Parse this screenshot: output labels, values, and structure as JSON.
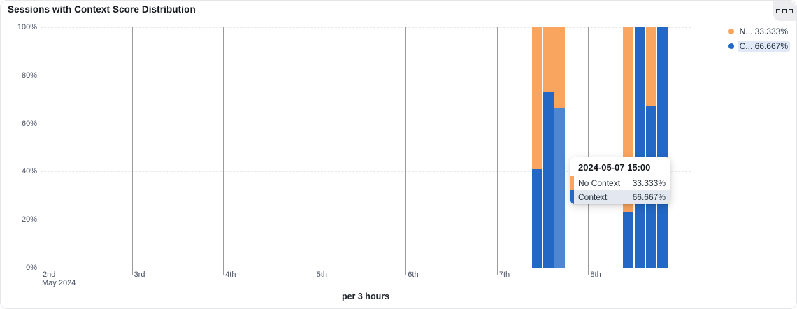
{
  "panel": {
    "title": "Sessions with Context Score Distribution",
    "corner_icon": "three-squares-icon"
  },
  "legend": {
    "items": [
      {
        "label": "N... 33.333%",
        "color": "#f9a45f",
        "highlighted": false
      },
      {
        "label": "C... 66.667%",
        "color": "#2368c4",
        "highlighted": true
      }
    ]
  },
  "tooltip": {
    "title": "2024-05-07 15:00",
    "rows": [
      {
        "label": "No Context",
        "value": "33.333%",
        "color": "#f9a45f",
        "highlighted": false
      },
      {
        "label": "Context",
        "value": "66.667%",
        "color": "#2368c4",
        "highlighted": true
      }
    ]
  },
  "chart_data": {
    "type": "bar",
    "stacked": true,
    "title": "Sessions with Context Score Distribution",
    "x_axis": {
      "name": "per 3 hours",
      "month_label": "May 2024",
      "tick_labels": [
        "2nd",
        "3rd",
        "4th",
        "5th",
        "6th",
        "7th",
        "8th"
      ]
    },
    "y_axis": {
      "tick_labels": [
        "0%",
        "20%",
        "40%",
        "60%",
        "80%",
        "100%"
      ],
      "range": [
        0,
        100
      ],
      "grid": "dashed-horizontal, solid-vertical-per-day"
    },
    "colors": {
      "context": "#2368c4",
      "context_hovered": "#4e86d2",
      "no_context": "#f9a45f"
    },
    "series": [
      {
        "name": "No Context",
        "stack_position": "top",
        "legend_value": "33.333%"
      },
      {
        "name": "Context",
        "stack_position": "bottom",
        "legend_value": "66.667%"
      }
    ],
    "bars": [
      {
        "time": "2024-05-07 09:00",
        "context": 41,
        "no_context": 59
      },
      {
        "time": "2024-05-07 12:00",
        "context": 73.3,
        "no_context": 26.7
      },
      {
        "time": "2024-05-07 15:00",
        "context": 66.667,
        "no_context": 33.333,
        "hovered": true
      },
      {
        "time": "2024-05-08 09:00",
        "context": 23.3,
        "no_context": 76.7
      },
      {
        "time": "2024-05-08 12:00",
        "context": 100,
        "no_context": 0
      },
      {
        "time": "2024-05-08 15:00",
        "context": 67.5,
        "no_context": 32.5
      },
      {
        "time": "2024-05-08 18:00",
        "context": 100,
        "no_context": 0
      }
    ]
  }
}
